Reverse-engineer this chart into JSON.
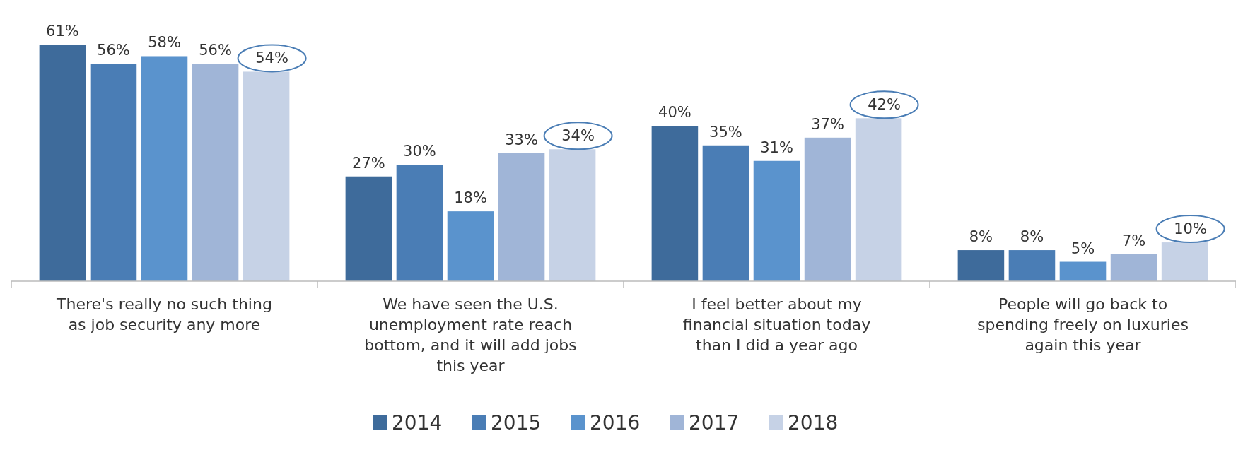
{
  "chart_data": {
    "type": "bar",
    "categories": [
      "There's really no such thing as job security any more",
      "We have seen the U.S. unemployment rate reach bottom, and it will add jobs this year",
      "I feel better about my financial situation today than I did a year ago",
      "People will go back to spending freely on luxuries again this year"
    ],
    "series": [
      {
        "name": "2014",
        "color": "#3e6b9b",
        "values": [
          61,
          27,
          40,
          8
        ],
        "value_labels": [
          "61%",
          "27%",
          "40%",
          "8%"
        ]
      },
      {
        "name": "2015",
        "color": "#4a7db5",
        "values": [
          56,
          30,
          35,
          8
        ],
        "value_labels": [
          "56%",
          "30%",
          "35%",
          "8%"
        ]
      },
      {
        "name": "2016",
        "color": "#5a93cd",
        "values": [
          58,
          18,
          31,
          5
        ],
        "value_labels": [
          "58%",
          "18%",
          "31%",
          "5%"
        ]
      },
      {
        "name": "2017",
        "color": "#a0b5d7",
        "values": [
          56,
          33,
          37,
          7
        ],
        "value_labels": [
          "56%",
          "33%",
          "37%",
          "7%"
        ]
      },
      {
        "name": "2018",
        "color": "#c6d2e6",
        "values": [
          54,
          34,
          42,
          10
        ],
        "value_labels": [
          "54%",
          "34%",
          "42%",
          "10%"
        ]
      }
    ],
    "legend": "bottom",
    "grid": false
  }
}
